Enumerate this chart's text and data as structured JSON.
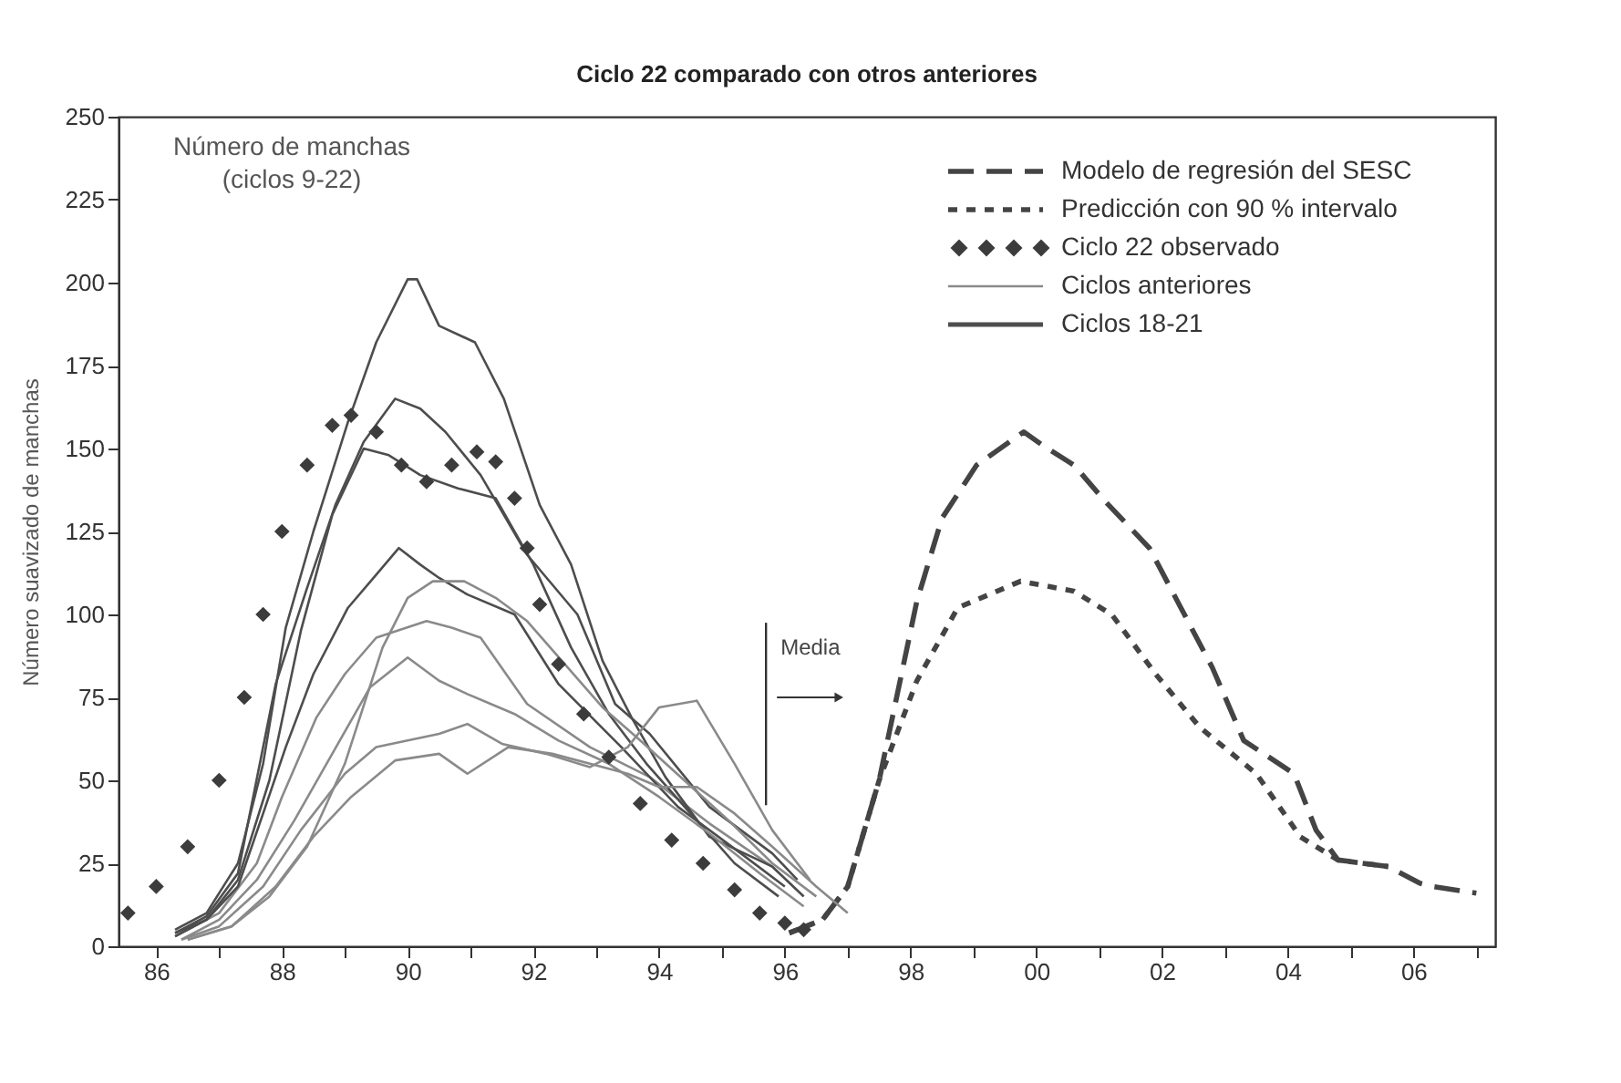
{
  "chart_data": {
    "type": "line",
    "title": "Ciclo 22 comparado con otros anteriores",
    "ylabel": "Número suavizado de manchas",
    "xlim": [
      1985.4,
      2007.3
    ],
    "ylim": [
      0,
      250
    ],
    "xticks": [
      {
        "value": 1986,
        "label": "86"
      },
      {
        "value": 1987,
        "label": null
      },
      {
        "value": 1988,
        "label": "88"
      },
      {
        "value": 1989,
        "label": null
      },
      {
        "value": 1990,
        "label": "90"
      },
      {
        "value": 1991,
        "label": null
      },
      {
        "value": 1992,
        "label": "92"
      },
      {
        "value": 1993,
        "label": null
      },
      {
        "value": 1994,
        "label": "94"
      },
      {
        "value": 1995,
        "label": null
      },
      {
        "value": 1996,
        "label": "96"
      },
      {
        "value": 1997,
        "label": null
      },
      {
        "value": 1998,
        "label": "98"
      },
      {
        "value": 1999,
        "label": null
      },
      {
        "value": 2000,
        "label": "00"
      },
      {
        "value": 2001,
        "label": null
      },
      {
        "value": 2002,
        "label": "02"
      },
      {
        "value": 2003,
        "label": null
      },
      {
        "value": 2004,
        "label": "04"
      },
      {
        "value": 2005,
        "label": null
      },
      {
        "value": 2006,
        "label": "06"
      },
      {
        "value": 2007,
        "label": null
      }
    ],
    "yticks": [
      0,
      25,
      50,
      75,
      100,
      125,
      150,
      175,
      200,
      225,
      250
    ],
    "grid": false,
    "legend": "top right",
    "annotations": [
      "Número de manchas\n(ciclos 9-22)"
    ],
    "ref_lines": [
      {
        "axis": "x",
        "value": 1995.7,
        "label": "Media"
      }
    ],
    "series": [
      {
        "name": "Modelo de regresión del SESC",
        "color": "#444444",
        "line_style": "dashed",
        "marker": "none",
        "x": [
          1996.07,
          1996.6,
          1997.0,
          1997.5,
          1998.1,
          1998.5,
          1999.05,
          1999.8,
          2000.1,
          2000.6,
          2001.1,
          2001.8,
          2002.3,
          2002.8,
          2003.3,
          2004.1,
          2004.45,
          2004.8,
          2005.6,
          2006.1,
          2006.3,
          2007.0
        ],
        "values": [
          4,
          8,
          18,
          50,
          104,
          129,
          145,
          155,
          151,
          145,
          134,
          120,
          102,
          84,
          62,
          52,
          35,
          26,
          24,
          19,
          18,
          16
        ]
      },
      {
        "name": "Predicción con 90 % intervalo",
        "color": "#444444",
        "line_style": "dotted",
        "marker": "none",
        "x": [
          1996.07,
          1996.6,
          1997.0,
          1997.5,
          1998.1,
          1998.75,
          1999.75,
          2000.6,
          2001.2,
          2001.9,
          2002.6,
          2003.5,
          2004.2,
          2004.8,
          2005.6
        ],
        "values": [
          4,
          8,
          18,
          50,
          80,
          102,
          110,
          107,
          100,
          82,
          66,
          52,
          33,
          26,
          24
        ]
      },
      {
        "name": "Ciclo 22 observado",
        "type": "scatter",
        "color": "#3c3c3c",
        "marker": "diamond",
        "x": [
          1985.55,
          1986.0,
          1986.5,
          1987.0,
          1987.4,
          1987.7,
          1988.0,
          1988.4,
          1988.8,
          1989.1,
          1989.5,
          1989.9,
          1990.3,
          1990.7,
          1991.1,
          1991.4,
          1991.7,
          1991.9,
          1992.1,
          1992.4,
          1992.8,
          1993.2,
          1993.7,
          1994.2,
          1994.7,
          1995.2,
          1995.6,
          1996.0,
          1996.3
        ],
        "values": [
          10,
          18,
          30,
          50,
          75,
          100,
          125,
          145,
          157,
          160,
          155,
          145,
          140,
          145,
          149,
          146,
          135,
          120,
          103,
          85,
          70,
          57,
          43,
          32,
          25,
          17,
          10,
          7,
          5
        ]
      },
      {
        "name": "Ciclos anteriores",
        "color": "#8a8a8a",
        "line_style": "solid",
        "marker": "none",
        "x": [
          1986.3,
          1987.0,
          1987.6,
          1988.0,
          1988.55,
          1989.0,
          1989.5,
          1990.3,
          1990.7,
          1991.16,
          1991.9,
          1992.9,
          1993.85,
          1994.8,
          1995.8,
          1996.3
        ],
        "values": [
          3,
          10,
          25,
          45,
          69,
          82,
          93,
          98,
          96,
          93,
          73,
          60,
          51,
          37,
          24,
          15
        ]
      },
      {
        "name": "Ciclos 18-21",
        "color": "#4d4d4d",
        "line_style": "solid",
        "marker": "none",
        "x": [
          1986.3,
          1986.8,
          1987.3,
          1987.7,
          1988.06,
          1988.5,
          1989.05,
          1989.5,
          1990.0,
          1990.15,
          1990.5,
          1991.07,
          1991.53,
          1992.1,
          1992.6,
          1993.1,
          1993.56,
          1994.1,
          1994.8,
          1995.8,
          1996.3
        ],
        "values": [
          5,
          10,
          25,
          55,
          96,
          125,
          158,
          182,
          201,
          201,
          187,
          182,
          165,
          133,
          115,
          86,
          69,
          51,
          33,
          24,
          15
        ]
      },
      {
        "color": "#4d4d4d",
        "line_style": "solid",
        "marker": "none",
        "x": [
          1986.3,
          1986.8,
          1987.3,
          1987.9,
          1988.4,
          1988.85,
          1989.3,
          1989.8,
          1990.2,
          1990.6,
          1991.16,
          1991.9,
          1992.7,
          1993.3,
          1993.85,
          1994.8,
          1995.8,
          1996.2
        ],
        "values": [
          4,
          9,
          22,
          79,
          108,
          133,
          152,
          165,
          162,
          155,
          142,
          118,
          100,
          73,
          64,
          42,
          28,
          20
        ]
      },
      {
        "color": "#4d4d4d",
        "line_style": "solid",
        "marker": "none",
        "x": [
          1986.3,
          1986.8,
          1987.3,
          1987.8,
          1988.3,
          1988.8,
          1989.3,
          1989.7,
          1990.2,
          1990.8,
          1991.4,
          1992.0,
          1992.6,
          1993.2,
          1993.8,
          1994.5,
          1995.2,
          1995.9
        ],
        "values": [
          3,
          8,
          20,
          50,
          95,
          130,
          150,
          148,
          142,
          138,
          135,
          115,
          90,
          70,
          55,
          40,
          25,
          15
        ]
      },
      {
        "color": "#4d4d4d",
        "line_style": "solid",
        "marker": "none",
        "x": [
          1986.3,
          1986.8,
          1987.3,
          1987.7,
          1988.06,
          1988.5,
          1989.05,
          1989.5,
          1989.86,
          1990.2,
          1990.5,
          1990.95,
          1991.7,
          1992.4,
          1993.4,
          1994.3,
          1995.3,
          1996.0
        ],
        "values": [
          4,
          8,
          18,
          40,
          60,
          82,
          102,
          112,
          120,
          115,
          111,
          106,
          100,
          79,
          60,
          42,
          28,
          18
        ]
      },
      {
        "color": "#8a8a8a",
        "line_style": "solid",
        "marker": "none",
        "x": [
          1986.4,
          1987.0,
          1987.6,
          1988.2,
          1988.8,
          1989.4,
          1990.0,
          1990.5,
          1990.95,
          1991.7,
          1992.4,
          1993.2,
          1994.0,
          1994.8,
          1995.6,
          1996.3
        ],
        "values": [
          2,
          8,
          20,
          38,
          58,
          78,
          87,
          80,
          76,
          70,
          62,
          55,
          45,
          34,
          22,
          12
        ]
      },
      {
        "color": "#8a8a8a",
        "line_style": "solid",
        "marker": "none",
        "x": [
          1986.4,
          1987.0,
          1987.7,
          1988.3,
          1989.0,
          1989.5,
          1990.0,
          1990.5,
          1990.95,
          1991.5,
          1992.2,
          1992.9,
          1993.5,
          1994.0,
          1994.6,
          1995.2,
          1995.8,
          1996.4
        ],
        "values": [
          2,
          6,
          18,
          35,
          52,
          60,
          62,
          64,
          67,
          61,
          58,
          54,
          60,
          72,
          74,
          55,
          35,
          20
        ]
      },
      {
        "color": "#8a8a8a",
        "line_style": "solid",
        "marker": "none",
        "x": [
          1986.5,
          1987.2,
          1987.9,
          1988.5,
          1989.1,
          1989.8,
          1990.5,
          1990.95,
          1991.6,
          1992.3,
          1992.9,
          1993.5,
          1994.0,
          1994.6,
          1995.2,
          1995.8,
          1996.5,
          1997.0
        ],
        "values": [
          2,
          6,
          18,
          33,
          45,
          56,
          58,
          52,
          60,
          58,
          55,
          52,
          48,
          48,
          40,
          30,
          18,
          10
        ]
      },
      {
        "color": "#8a8a8a",
        "line_style": "solid",
        "marker": "none",
        "x": [
          1986.5,
          1987.2,
          1987.8,
          1988.4,
          1989.0,
          1989.6,
          1990.0,
          1990.4,
          1990.9,
          1991.4,
          1991.9,
          1992.5,
          1993.1,
          1993.7,
          1994.4,
          1995.1,
          1995.8,
          1996.5
        ],
        "values": [
          2,
          6,
          15,
          30,
          55,
          90,
          105,
          110,
          110,
          105,
          98,
          85,
          72,
          62,
          50,
          38,
          25,
          15
        ]
      }
    ]
  }
}
